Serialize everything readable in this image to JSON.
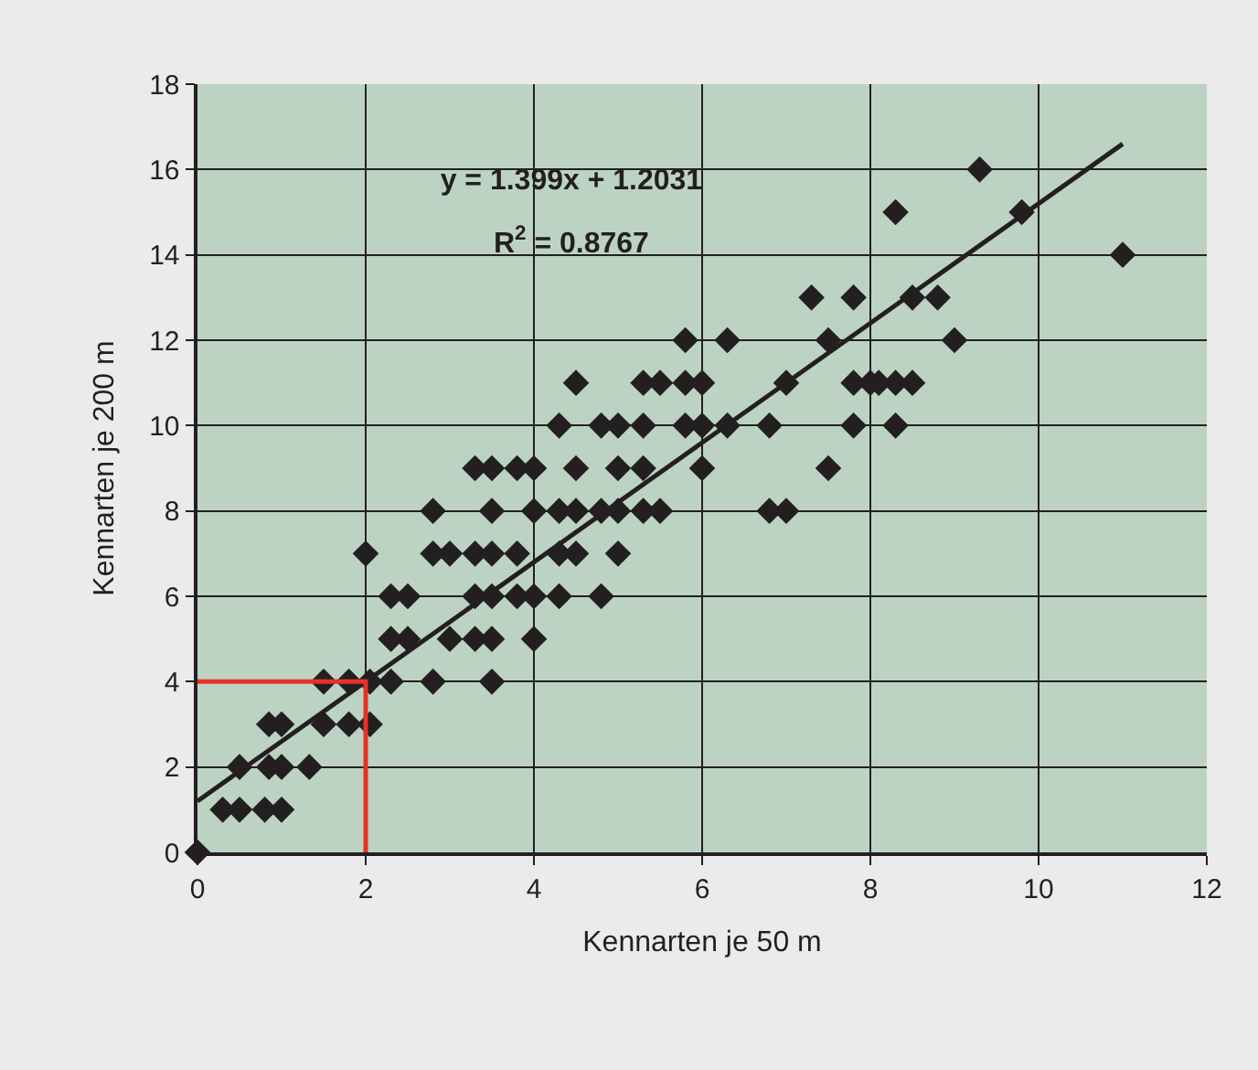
{
  "chart_data": {
    "type": "scatter",
    "xlabel": "Kennarten je 50 m",
    "ylabel": "Kennarten je 200 m",
    "annotations": [
      "y = 1.399x + 1.2031",
      "R$^{2}$ = 0.8767"
    ],
    "xlim": [
      0,
      12
    ],
    "xticks": [
      0,
      2,
      4,
      6,
      8,
      10,
      12
    ],
    "ylim": [
      0,
      18
    ],
    "yticks": [
      0,
      2,
      4,
      6,
      8,
      10,
      12,
      14,
      16,
      18
    ],
    "grid": true,
    "marker": "diamond",
    "series": [
      {
        "color": "#231f20",
        "x": [
          0,
          0.3,
          0.5,
          0.8,
          1.0,
          0.5,
          0.85,
          1.0,
          1.33,
          0.85,
          1.0,
          1.5,
          1.8,
          2.05,
          1.5,
          1.8,
          2.05,
          2.3,
          2.8,
          3.5,
          2.3,
          2.5,
          3.0,
          3.3,
          3.5,
          4.0,
          2.3,
          2.5,
          3.3,
          3.5,
          3.8,
          4.0,
          4.3,
          4.8,
          2.0,
          2.8,
          3.0,
          3.3,
          3.5,
          3.8,
          4.3,
          4.5,
          5.0,
          2.8,
          3.5,
          4.0,
          4.3,
          4.5,
          4.8,
          5.0,
          5.3,
          5.5,
          6.8,
          7.0,
          3.3,
          3.5,
          3.8,
          4.0,
          4.5,
          5.0,
          5.3,
          6.0,
          7.5,
          4.3,
          4.8,
          5.0,
          5.3,
          5.8,
          6.0,
          6.3,
          6.8,
          7.8,
          8.3,
          4.5,
          5.3,
          5.5,
          5.8,
          6.0,
          7.0,
          7.8,
          8.0,
          8.1,
          8.3,
          8.5,
          5.8,
          6.3,
          7.5,
          9.0,
          7.3,
          7.8,
          8.5,
          8.8,
          11.0,
          8.3,
          9.8,
          9.3
        ],
        "values": [
          0,
          1,
          1,
          1,
          1,
          2,
          2,
          2,
          2,
          3,
          3,
          3,
          3,
          3,
          4,
          4,
          4,
          4,
          4,
          4,
          5,
          5,
          5,
          5,
          5,
          5,
          6,
          6,
          6,
          6,
          6,
          6,
          6,
          6,
          7,
          7,
          7,
          7,
          7,
          7,
          7,
          7,
          7,
          8,
          8,
          8,
          8,
          8,
          8,
          8,
          8,
          8,
          8,
          8,
          9,
          9,
          9,
          9,
          9,
          9,
          9,
          9,
          9,
          10,
          10,
          10,
          10,
          10,
          10,
          10,
          10,
          10,
          10,
          11,
          11,
          11,
          11,
          11,
          11,
          11,
          11,
          11,
          11,
          11,
          12,
          12,
          12,
          12,
          13,
          13,
          13,
          13,
          14,
          15,
          15,
          16
        ]
      },
      {
        "type": "line",
        "color": "#231f20",
        "x": [
          0,
          11
        ],
        "values": [
          1.2,
          16.6
        ],
        "marker": "none"
      },
      {
        "type": "line",
        "color": "#e8302a",
        "x": [
          0,
          2,
          2
        ],
        "values": [
          4,
          4,
          0
        ],
        "marker": "none"
      }
    ]
  }
}
